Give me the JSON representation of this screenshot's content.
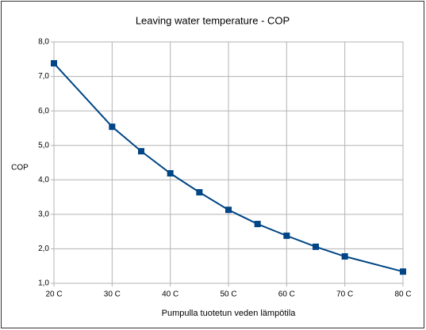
{
  "chart_data": {
    "type": "line",
    "title": "Leaving water temperature - COP",
    "x_label": "Pumpulla tuotetun veden lämpötila",
    "y_label": "COP",
    "x": [
      20,
      30,
      35,
      40,
      45,
      50,
      55,
      60,
      65,
      70,
      80
    ],
    "series": [
      {
        "name": "COP",
        "color": "#004586",
        "values": [
          7.38,
          5.54,
          4.83,
          4.19,
          3.64,
          3.13,
          2.72,
          2.38,
          2.06,
          1.78,
          1.34
        ]
      }
    ],
    "xlim": [
      20,
      80
    ],
    "xticks": [
      {
        "value": 20,
        "label": "20 C"
      },
      {
        "value": 30,
        "label": "30 C"
      },
      {
        "value": 40,
        "label": "40 C"
      },
      {
        "value": 50,
        "label": "50 C"
      },
      {
        "value": 60,
        "label": "60 C"
      },
      {
        "value": 70,
        "label": "70 C"
      },
      {
        "value": 80,
        "label": "80 C"
      }
    ],
    "ylim": [
      1,
      8
    ],
    "yticks": [
      {
        "value": 1,
        "label": "1,0"
      },
      {
        "value": 2,
        "label": "2,0"
      },
      {
        "value": 3,
        "label": "3,0"
      },
      {
        "value": 4,
        "label": "4,0"
      },
      {
        "value": 5,
        "label": "5,0"
      },
      {
        "value": 6,
        "label": "6,0"
      },
      {
        "value": 7,
        "label": "7,0"
      },
      {
        "value": 8,
        "label": "8,0"
      }
    ],
    "grid": true
  }
}
